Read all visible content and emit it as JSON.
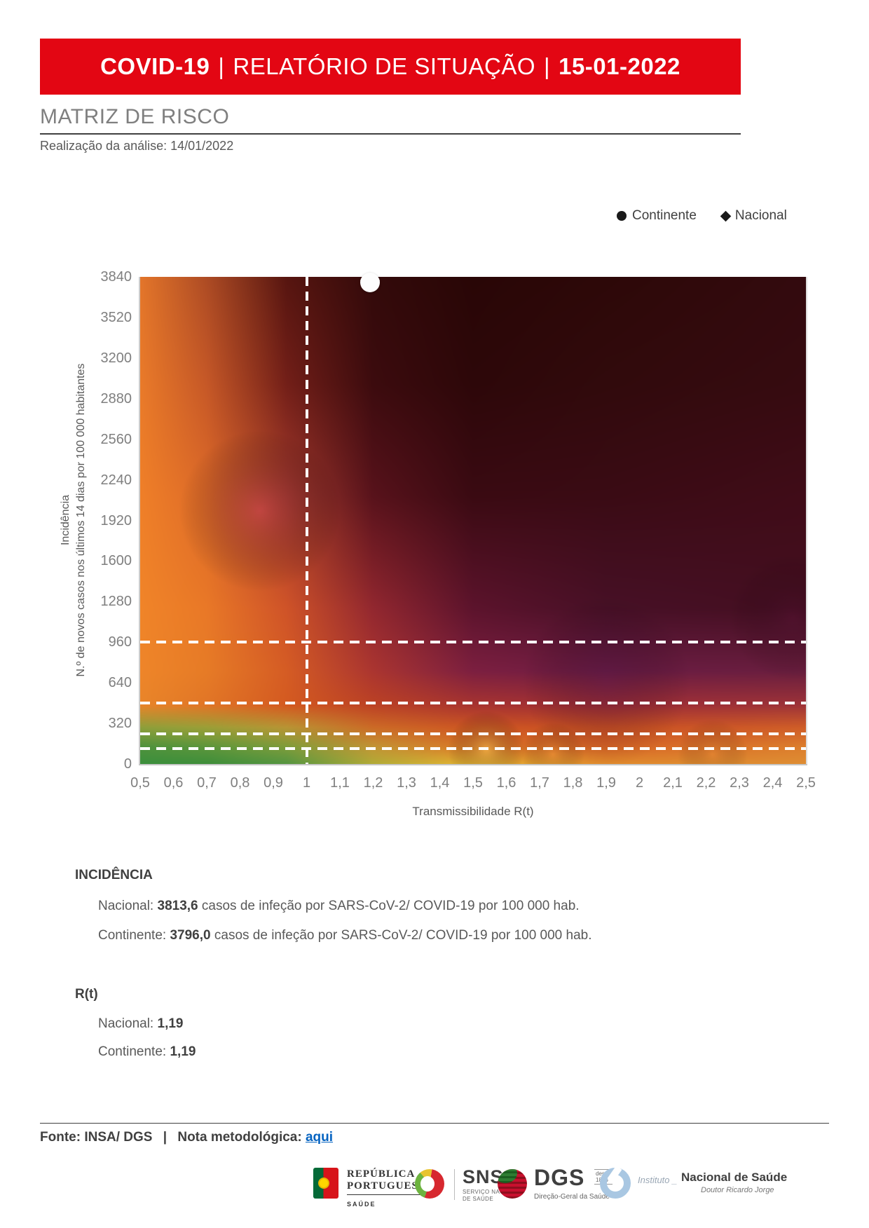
{
  "header": {
    "title_prefix": "COVID-19",
    "separator": "|",
    "title_main": "RELATÓRIO DE SITUAÇÃO",
    "date": "15-01-2022"
  },
  "section": {
    "title": "MATRIZ DE RISCO",
    "subtitle": "Realização da análise: 14/01/2022"
  },
  "legend": {
    "continente": "Continente",
    "nacional": "Nacional"
  },
  "chart_data": {
    "type": "heatmap",
    "title": "Matriz de risco",
    "x_axis": {
      "label": "Transmissibilidade R(t)",
      "min": 0.5,
      "max": 2.5,
      "tick_labels": [
        "0,5",
        "0,6",
        "0,7",
        "0,8",
        "0,9",
        "1",
        "1,1",
        "1,2",
        "1,3",
        "1,4",
        "1,5",
        "1,6",
        "1,7",
        "1,8",
        "1,9",
        "2",
        "2,1",
        "2,2",
        "2,3",
        "2,4",
        "2,5"
      ],
      "tick_values": [
        0.5,
        0.6,
        0.7,
        0.8,
        0.9,
        1,
        1.1,
        1.2,
        1.3,
        1.4,
        1.5,
        1.6,
        1.7,
        1.8,
        1.9,
        2,
        2.1,
        2.2,
        2.3,
        2.4,
        2.5
      ]
    },
    "y_axis": {
      "label_line1": "Incidência",
      "label_line2": "N.º de novos casos nos últimos 14 dias por 100 000 habitantes",
      "min": 0,
      "max": 3840,
      "tick_values": [
        0,
        320,
        640,
        960,
        1280,
        1600,
        1920,
        2240,
        2560,
        2880,
        3200,
        3520,
        3840
      ]
    },
    "reference_lines": {
      "vertical_rt": [
        1
      ],
      "horizontal_incidence": [
        960,
        480,
        240,
        120
      ]
    },
    "series": [
      {
        "name": "Nacional",
        "marker": "diamond",
        "rt": 1.19,
        "incidence": 3813.6
      },
      {
        "name": "Continente",
        "marker": "circle",
        "rt": 1.19,
        "incidence": 3796.0
      }
    ],
    "legend_position": "top-right",
    "background": {
      "u_stops": [
        0,
        0.1,
        0.22,
        0.35,
        0.5,
        0.7,
        1.0
      ],
      "v_stops": [
        0,
        0.035,
        0.075,
        0.12,
        0.19,
        0.32,
        0.55,
        0.78,
        1.0
      ],
      "grid_colors": [
        [
          "#3c8f3c",
          "#3f8e3a",
          "#569540",
          "#b2ab36",
          "#e7b232",
          "#e08a2c",
          "#de8d33"
        ],
        [
          "#4f923c",
          "#5d963b",
          "#7f9c3a",
          "#c29434",
          "#dc7626",
          "#d76426",
          "#dc7e2c"
        ],
        [
          "#8f9f3a",
          "#9c9f37",
          "#b99434",
          "#cc6a26",
          "#cd5522",
          "#c94f24",
          "#cf5d28"
        ],
        [
          "#e88529",
          "#e17526",
          "#d45a20",
          "#bc4224",
          "#a83430",
          "#a02e36",
          "#9e3338"
        ],
        [
          "#ee8529",
          "#e67b26",
          "#d55c24",
          "#ab3530",
          "#7c1f40",
          "#6c1c44",
          "#691e3e"
        ],
        [
          "#f08428",
          "#e97827",
          "#cf5328",
          "#92272f",
          "#5c132c",
          "#471026",
          "#440e20"
        ],
        [
          "#ef7f28",
          "#dd6a28",
          "#a53b2d",
          "#58121b",
          "#3a0a12",
          "#3a0b14",
          "#400c18"
        ],
        [
          "#e97a29",
          "#c65827",
          "#731f18",
          "#3c0b0e",
          "#2d0709",
          "#310a0c",
          "#360b10"
        ],
        [
          "#e3752a",
          "#ad4b24",
          "#571510",
          "#330a0a",
          "#290606",
          "#2d0808",
          "#330a0e"
        ]
      ],
      "highlights": [
        {
          "u": 0.18,
          "v": 0.52,
          "r": 115,
          "color": "rgba(198,62,86,0.50)"
        },
        {
          "u": 0.52,
          "v": 0.03,
          "r": 55,
          "color": "rgba(248,196,84,0.55)"
        },
        {
          "u": 0.62,
          "v": 0.02,
          "r": 45,
          "color": "rgba(240,150,60,0.40)"
        },
        {
          "u": 0.86,
          "v": 0.02,
          "r": 50,
          "color": "rgba(238,140,56,0.35)"
        },
        {
          "u": 0.7,
          "v": 0.17,
          "r": 120,
          "color": "rgba(70,20,70,0.30)"
        },
        {
          "u": 0.98,
          "v": 0.3,
          "r": 90,
          "color": "rgba(90,20,60,0.30)"
        }
      ]
    }
  },
  "incidencia": {
    "heading": "INCIDÊNCIA",
    "lines": [
      {
        "label": "Nacional: ",
        "value": "3813,6",
        "suffix": " casos de infeção por SARS-CoV-2/ COVID-19 por 100 000 hab."
      },
      {
        "label": "Continente: ",
        "value": "3796,0",
        "suffix": " casos de infeção por SARS-CoV-2/ COVID-19 por 100 000 hab."
      }
    ]
  },
  "rt": {
    "heading": "R(t)",
    "lines": [
      {
        "label": "Nacional: ",
        "value": "1,19"
      },
      {
        "label": "Continente: ",
        "value": "1,19"
      }
    ]
  },
  "footer": {
    "fonte": "Fonte: INSA/ DGS",
    "sep": "|",
    "nota": "Nota metodológica:",
    "link": "aqui"
  },
  "logos": {
    "republica": {
      "line1": "REPÚBLICA",
      "line2": "PORTUGUESA",
      "line3": "SAÚDE"
    },
    "sns": {
      "abbr": "SNS",
      "sub1": "SERVIÇO NACIONAL",
      "sub2": "DE SAÚDE"
    },
    "dgs": {
      "abbr": "DGS",
      "since1": "desde",
      "since2": "1898",
      "sub": "Direção-Geral da Saúde"
    },
    "insa": {
      "prefix": "Instituto _",
      "name": "Nacional de Saúde",
      "sub": "Doutor Ricardo Jorge"
    }
  }
}
